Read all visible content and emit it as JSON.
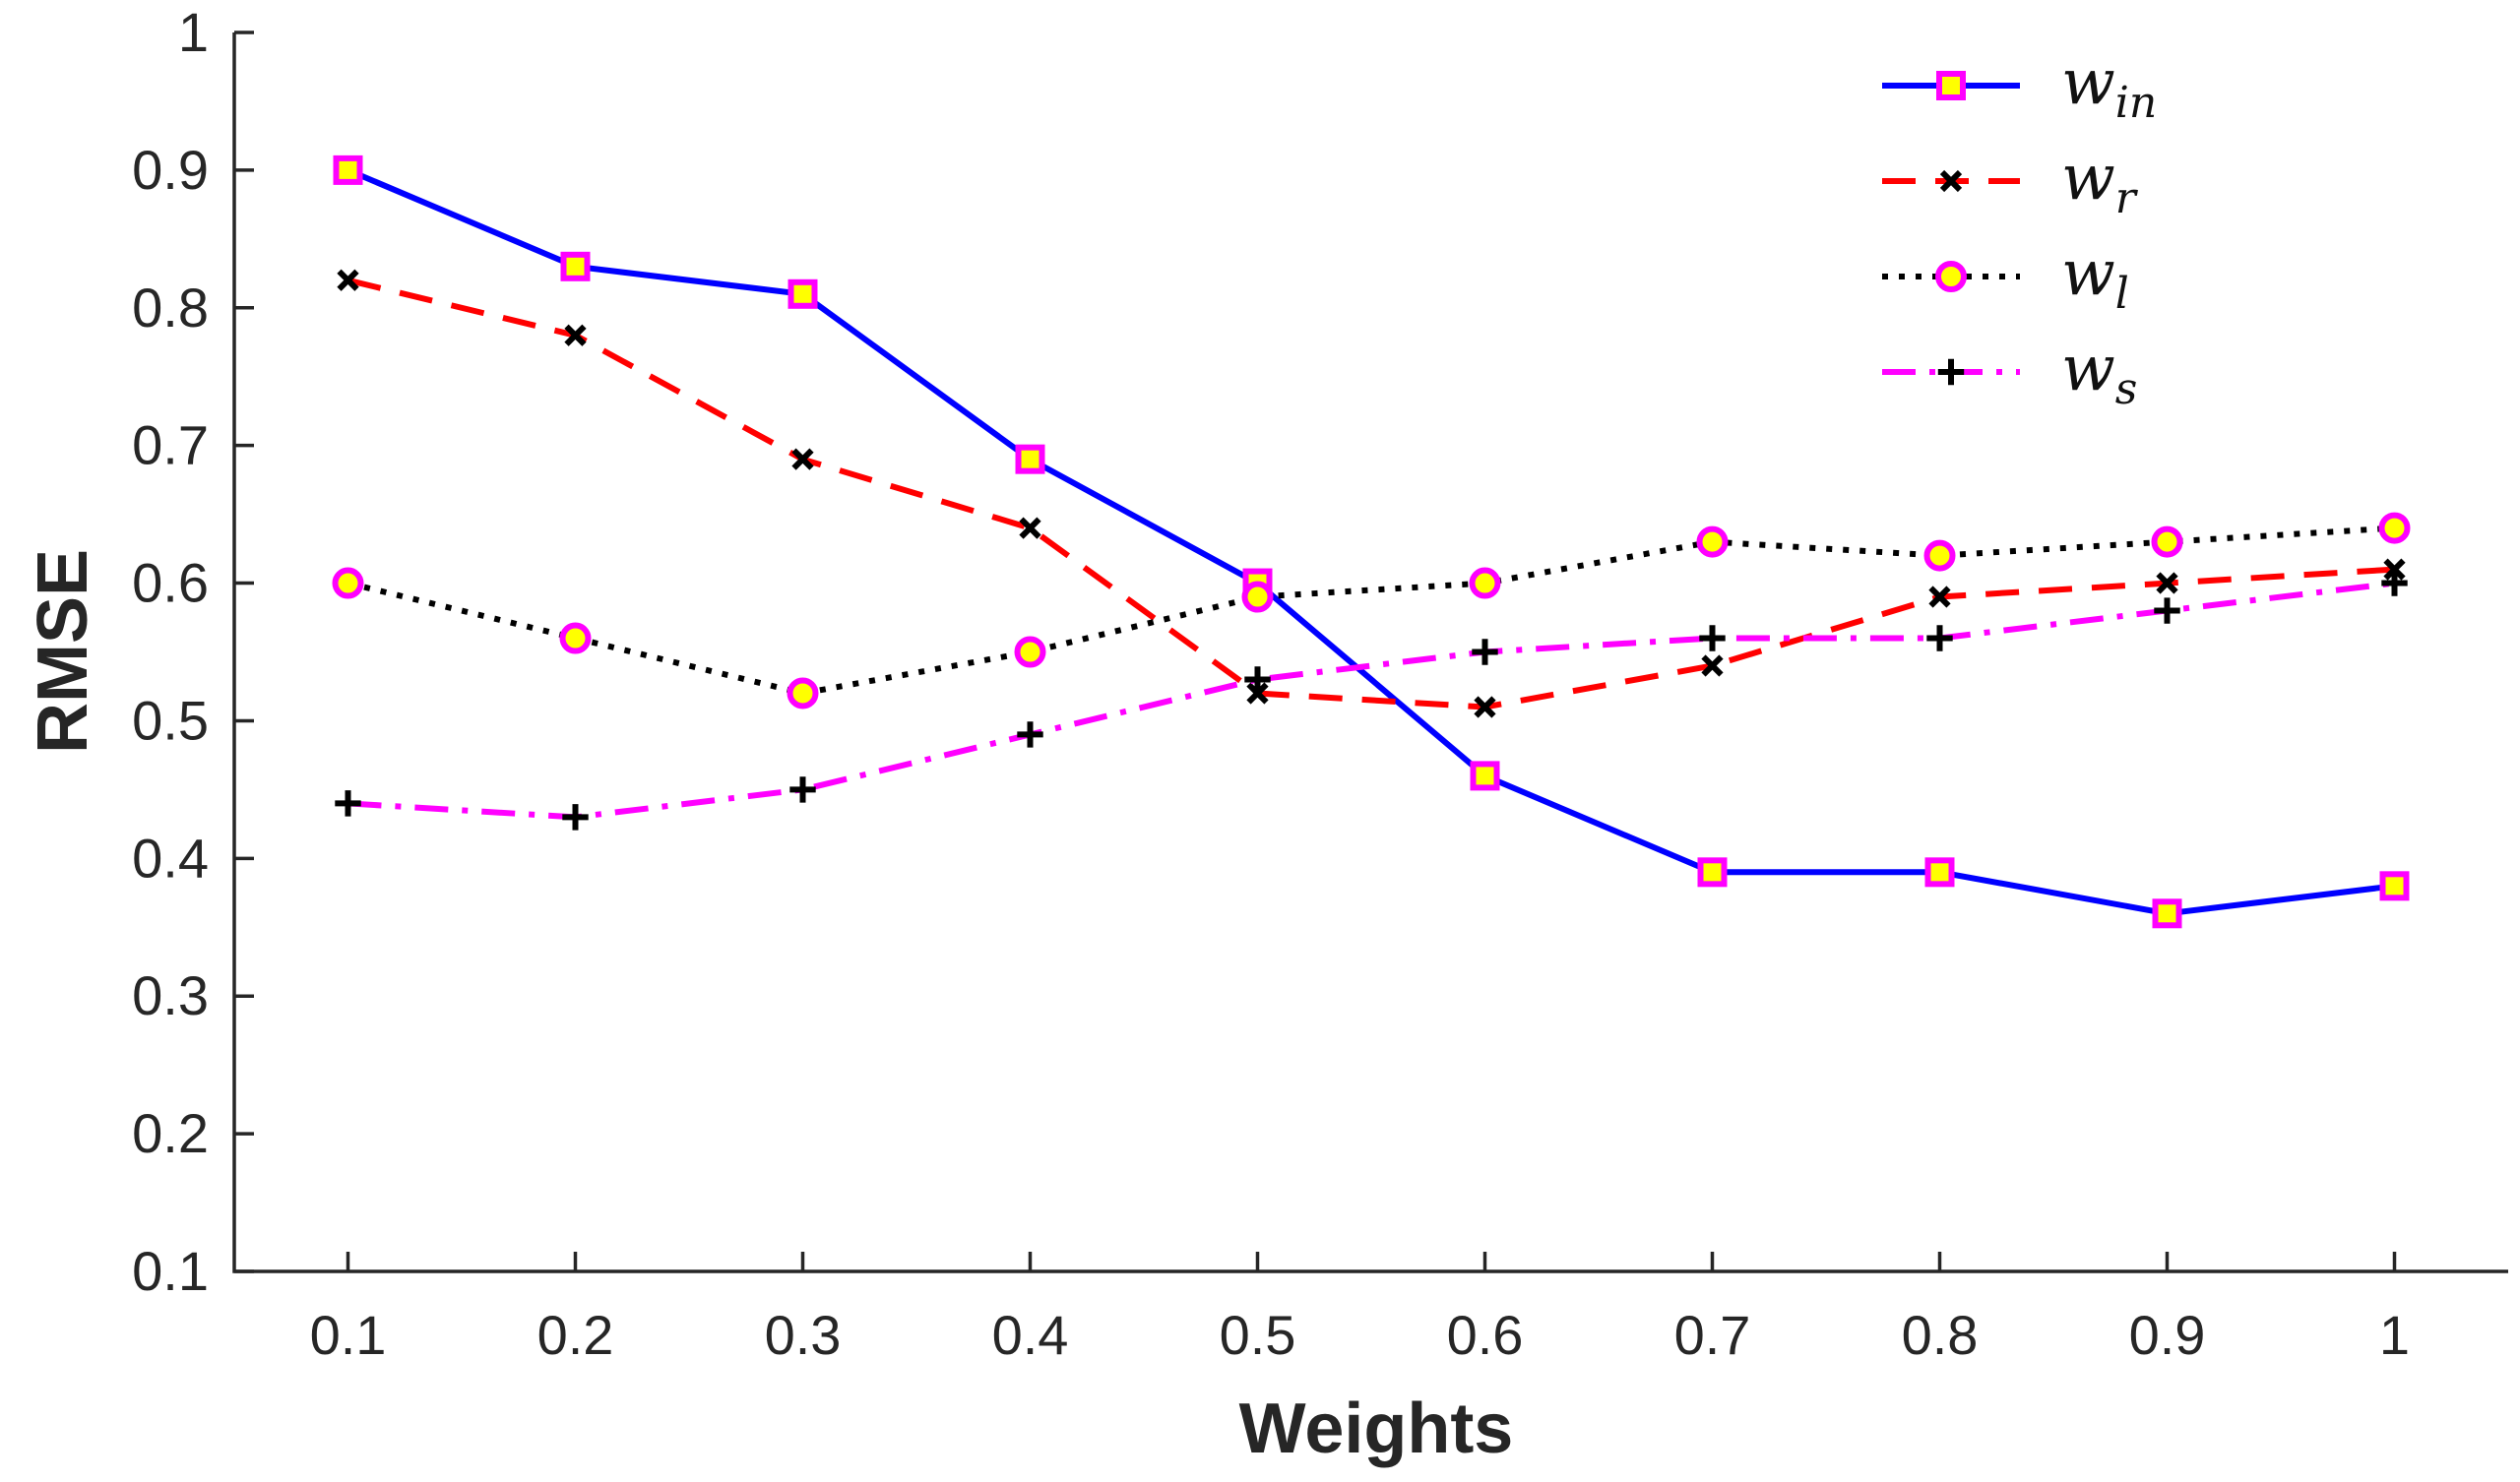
{
  "chart_data": {
    "type": "line",
    "title": "",
    "xlabel": "Weights",
    "ylabel": "RMSE",
    "x": [
      0.1,
      0.2,
      0.3,
      0.4,
      0.5,
      0.6,
      0.7,
      0.8,
      0.9,
      1.0
    ],
    "x_tick_labels": [
      "0.1",
      "0.2",
      "0.3",
      "0.4",
      "0.5",
      "0.6",
      "0.7",
      "0.8",
      "0.9",
      "1"
    ],
    "y_tick_labels": [
      "0.1",
      "0.2",
      "0.3",
      "0.4",
      "0.5",
      "0.6",
      "0.7",
      "0.8",
      "0.9",
      "1"
    ],
    "xlim": [
      0.05,
      1.05
    ],
    "ylim": [
      0.1,
      1.0
    ],
    "grid": false,
    "legend_position": "top-right",
    "series": [
      {
        "name": "w_in",
        "label_main": "w",
        "label_sub": "in",
        "color": "#0000FF",
        "line_style": "solid",
        "marker": "square",
        "marker_edge": "#FF00FF",
        "marker_fill": "#FFFF00",
        "values": [
          0.9,
          0.83,
          0.81,
          0.69,
          0.6,
          0.46,
          0.39,
          0.39,
          0.36,
          0.38
        ]
      },
      {
        "name": "w_r",
        "label_main": "w",
        "label_sub": "r",
        "color": "#FF0000",
        "line_style": "dashed",
        "marker": "x",
        "marker_edge": "#000000",
        "marker_fill": "none",
        "values": [
          0.82,
          0.78,
          0.69,
          0.64,
          0.52,
          0.51,
          0.54,
          0.59,
          0.6,
          0.61
        ]
      },
      {
        "name": "w_l",
        "label_main": "w",
        "label_sub": "l",
        "color": "#000000",
        "line_style": "dotted",
        "marker": "circle",
        "marker_edge": "#FF00FF",
        "marker_fill": "#FFFF00",
        "values": [
          0.6,
          0.56,
          0.52,
          0.55,
          0.59,
          0.6,
          0.63,
          0.62,
          0.63,
          0.64
        ]
      },
      {
        "name": "w_s",
        "label_main": "w",
        "label_sub": "s",
        "color": "#FF00FF",
        "line_style": "dashdot",
        "marker": "plus",
        "marker_edge": "#000000",
        "marker_fill": "none",
        "values": [
          0.44,
          0.43,
          0.45,
          0.49,
          0.53,
          0.55,
          0.56,
          0.56,
          0.58,
          0.6
        ]
      }
    ]
  }
}
